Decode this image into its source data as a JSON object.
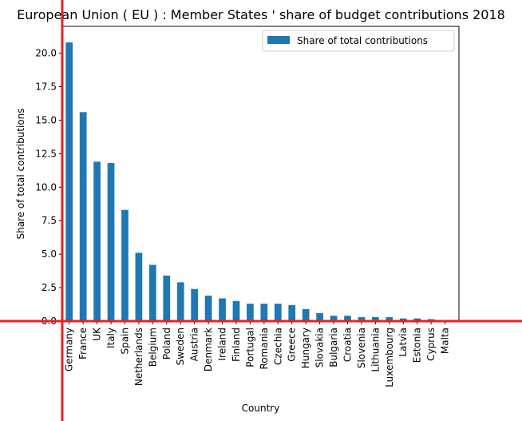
{
  "chart_data": {
    "type": "bar",
    "title": "European Union ( EU ) : Member States ' share of budget contributions 2018",
    "xlabel": "Country",
    "ylabel": "Share of total contributions",
    "ylim": [
      0,
      22.0
    ],
    "yticks": [
      "0.0",
      "2.5",
      "5.0",
      "7.5",
      "10.0",
      "12.5",
      "15.0",
      "17.5",
      "20.0"
    ],
    "legend_position": "top-right",
    "grid": false,
    "bar_color": "#1f77b4",
    "categories": [
      "Germany",
      "France",
      "UK",
      "Italy",
      "Spain",
      "Netherlands",
      "Belgium",
      "Poland",
      "Sweden",
      "Austria",
      "Denmark",
      "Ireland",
      "Finland",
      "Portugal",
      "Romania",
      "Czechia",
      "Greece",
      "Hungary",
      "Slovakia",
      "Bulgaria",
      "Croatia",
      "Slovenia",
      "Lithuania",
      "Luxembourg",
      "Latvia",
      "Estonia",
      "Cyprus",
      "Malta"
    ],
    "series": [
      {
        "name": "Share of total contributions",
        "values": [
          20.8,
          15.6,
          11.9,
          11.8,
          8.3,
          5.1,
          4.2,
          3.4,
          2.9,
          2.4,
          1.9,
          1.7,
          1.5,
          1.3,
          1.3,
          1.3,
          1.2,
          0.9,
          0.6,
          0.4,
          0.4,
          0.3,
          0.3,
          0.3,
          0.2,
          0.2,
          0.15,
          0.08
        ]
      }
    ]
  },
  "annotations": {
    "crosshair_color": "#e8201f"
  }
}
